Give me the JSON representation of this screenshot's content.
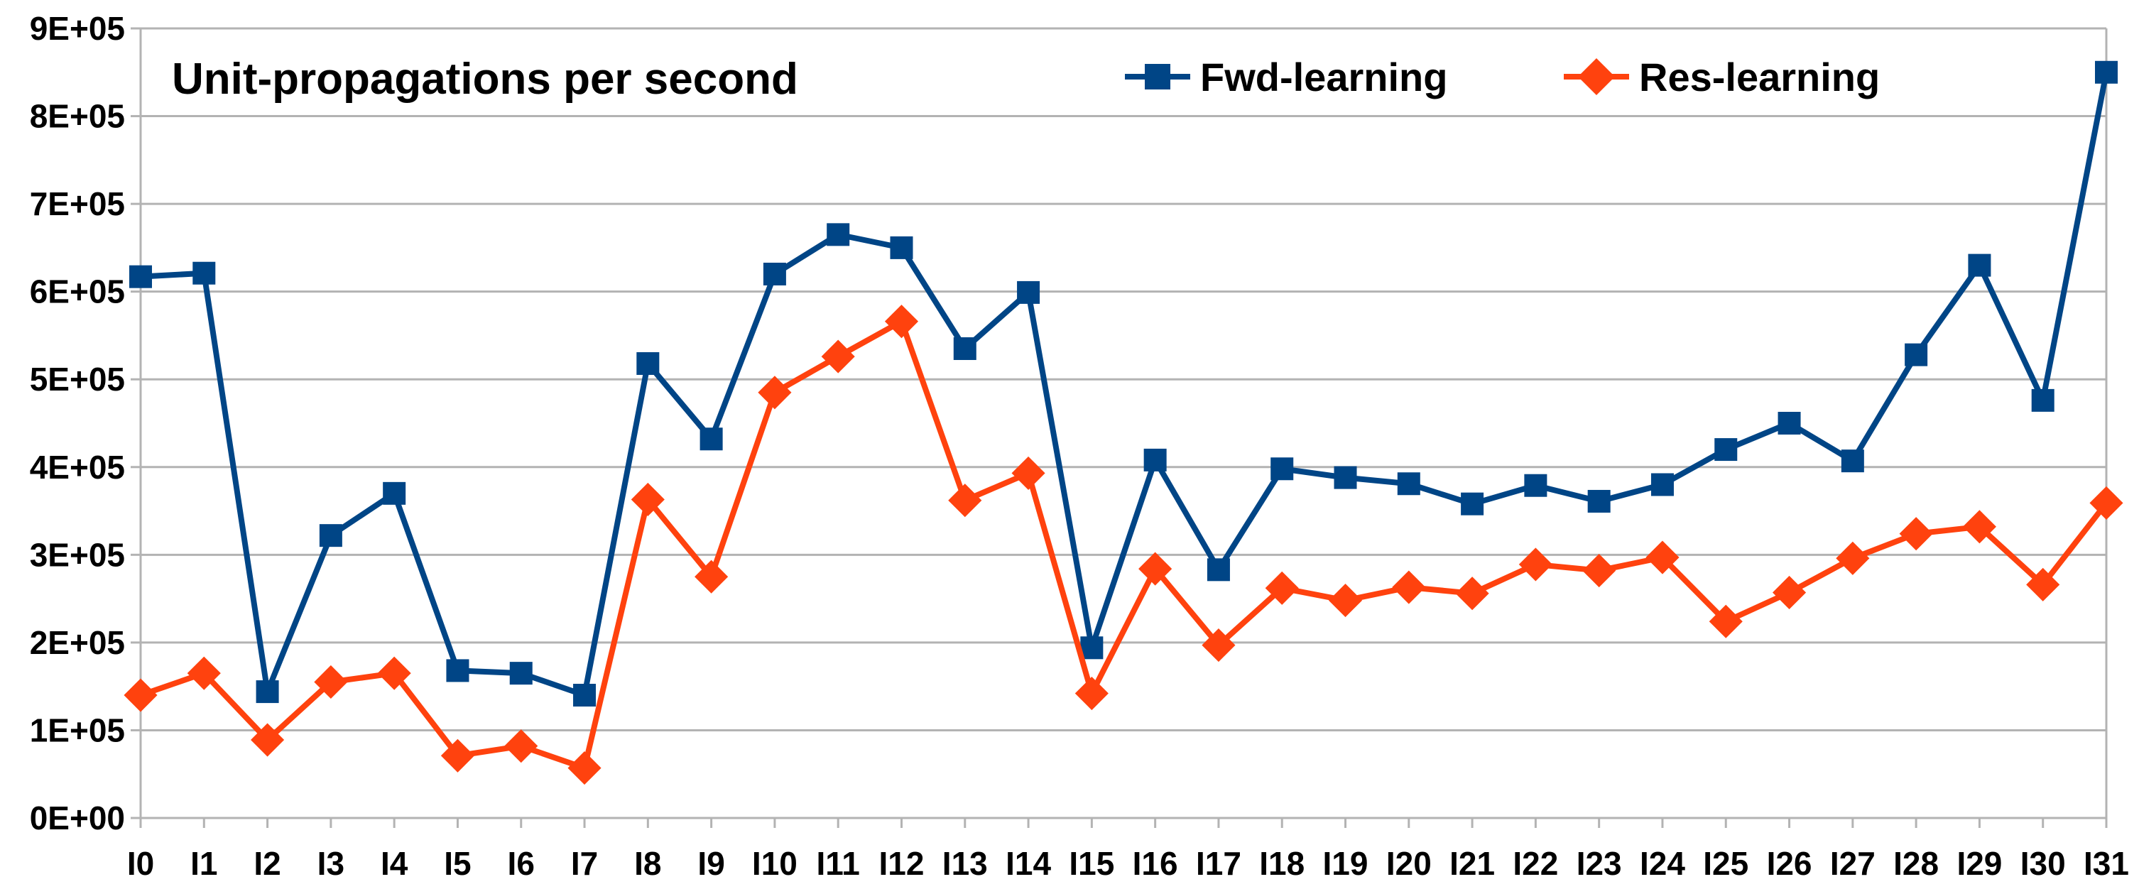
{
  "chart_data": {
    "type": "line",
    "title": "Unit-propagations per second",
    "xlabel": "",
    "ylabel": "",
    "categories": [
      "I0",
      "I1",
      "I2",
      "I3",
      "I4",
      "I5",
      "I6",
      "I7",
      "I8",
      "I9",
      "I10",
      "I11",
      "I12",
      "I13",
      "I14",
      "I15",
      "I16",
      "I17",
      "I18",
      "I19",
      "I20",
      "I21",
      "I22",
      "I23",
      "I24",
      "I25",
      "I26",
      "I27",
      "I28",
      "I29",
      "I30",
      "I31"
    ],
    "ylim": [
      0,
      900000
    ],
    "yticks": [
      "0E+00",
      "1E+05",
      "2E+05",
      "3E+05",
      "4E+05",
      "5E+05",
      "6E+05",
      "7E+05",
      "8E+05",
      "9E+05"
    ],
    "grid": true,
    "legend_position": "top-right",
    "series": [
      {
        "name": "Fwd-learning",
        "color": "#004586",
        "marker": "square",
        "values": [
          617000,
          621000,
          144000,
          322000,
          370000,
          168000,
          165000,
          140000,
          518000,
          432000,
          620000,
          665000,
          650000,
          535000,
          599000,
          194000,
          408000,
          283000,
          398000,
          388000,
          381000,
          358000,
          379000,
          361000,
          380000,
          420000,
          450000,
          407000,
          528000,
          630000,
          476000,
          850000
        ]
      },
      {
        "name": "Res-learning",
        "color": "#ff420e",
        "marker": "diamond",
        "values": [
          140000,
          165000,
          89000,
          155000,
          165000,
          71000,
          82000,
          57000,
          363000,
          275000,
          485000,
          526000,
          566000,
          362000,
          393000,
          142000,
          284000,
          197000,
          262000,
          248000,
          263000,
          256000,
          289000,
          282000,
          297000,
          224000,
          257000,
          296000,
          324000,
          332000,
          266000,
          359000
        ]
      }
    ]
  }
}
